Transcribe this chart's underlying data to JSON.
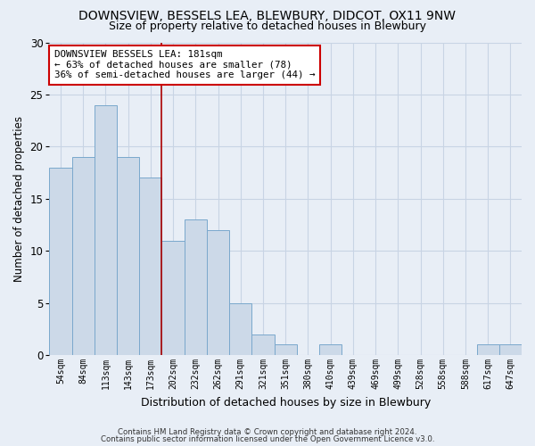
{
  "title": "DOWNSVIEW, BESSELS LEA, BLEWBURY, DIDCOT, OX11 9NW",
  "subtitle": "Size of property relative to detached houses in Blewbury",
  "xlabel": "Distribution of detached houses by size in Blewbury",
  "ylabel": "Number of detached properties",
  "categories": [
    "54sqm",
    "84sqm",
    "113sqm",
    "143sqm",
    "173sqm",
    "202sqm",
    "232sqm",
    "262sqm",
    "291sqm",
    "321sqm",
    "351sqm",
    "380sqm",
    "410sqm",
    "439sqm",
    "469sqm",
    "499sqm",
    "528sqm",
    "558sqm",
    "588sqm",
    "617sqm",
    "647sqm"
  ],
  "values": [
    18,
    19,
    24,
    19,
    17,
    11,
    13,
    12,
    5,
    2,
    1,
    0,
    1,
    0,
    0,
    0,
    0,
    0,
    0,
    1,
    1
  ],
  "bar_color": "#ccd9e8",
  "bar_edge_color": "#7aa8cc",
  "bar_edge_width": 0.7,
  "red_line_x": 5.0,
  "annotation_title": "DOWNSVIEW BESSELS LEA: 181sqm",
  "annotation_line1": "← 63% of detached houses are smaller (78)",
  "annotation_line2": "36% of semi-detached houses are larger (44) →",
  "annotation_box_color": "#ffffff",
  "annotation_box_edge": "#cc0000",
  "red_line_color": "#aa0000",
  "grid_color": "#c8d4e4",
  "background_color": "#e8eef6",
  "ylim": [
    0,
    30
  ],
  "yticks": [
    0,
    5,
    10,
    15,
    20,
    25,
    30
  ],
  "footer1": "Contains HM Land Registry data © Crown copyright and database right 2024.",
  "footer2": "Contains public sector information licensed under the Open Government Licence v3.0."
}
